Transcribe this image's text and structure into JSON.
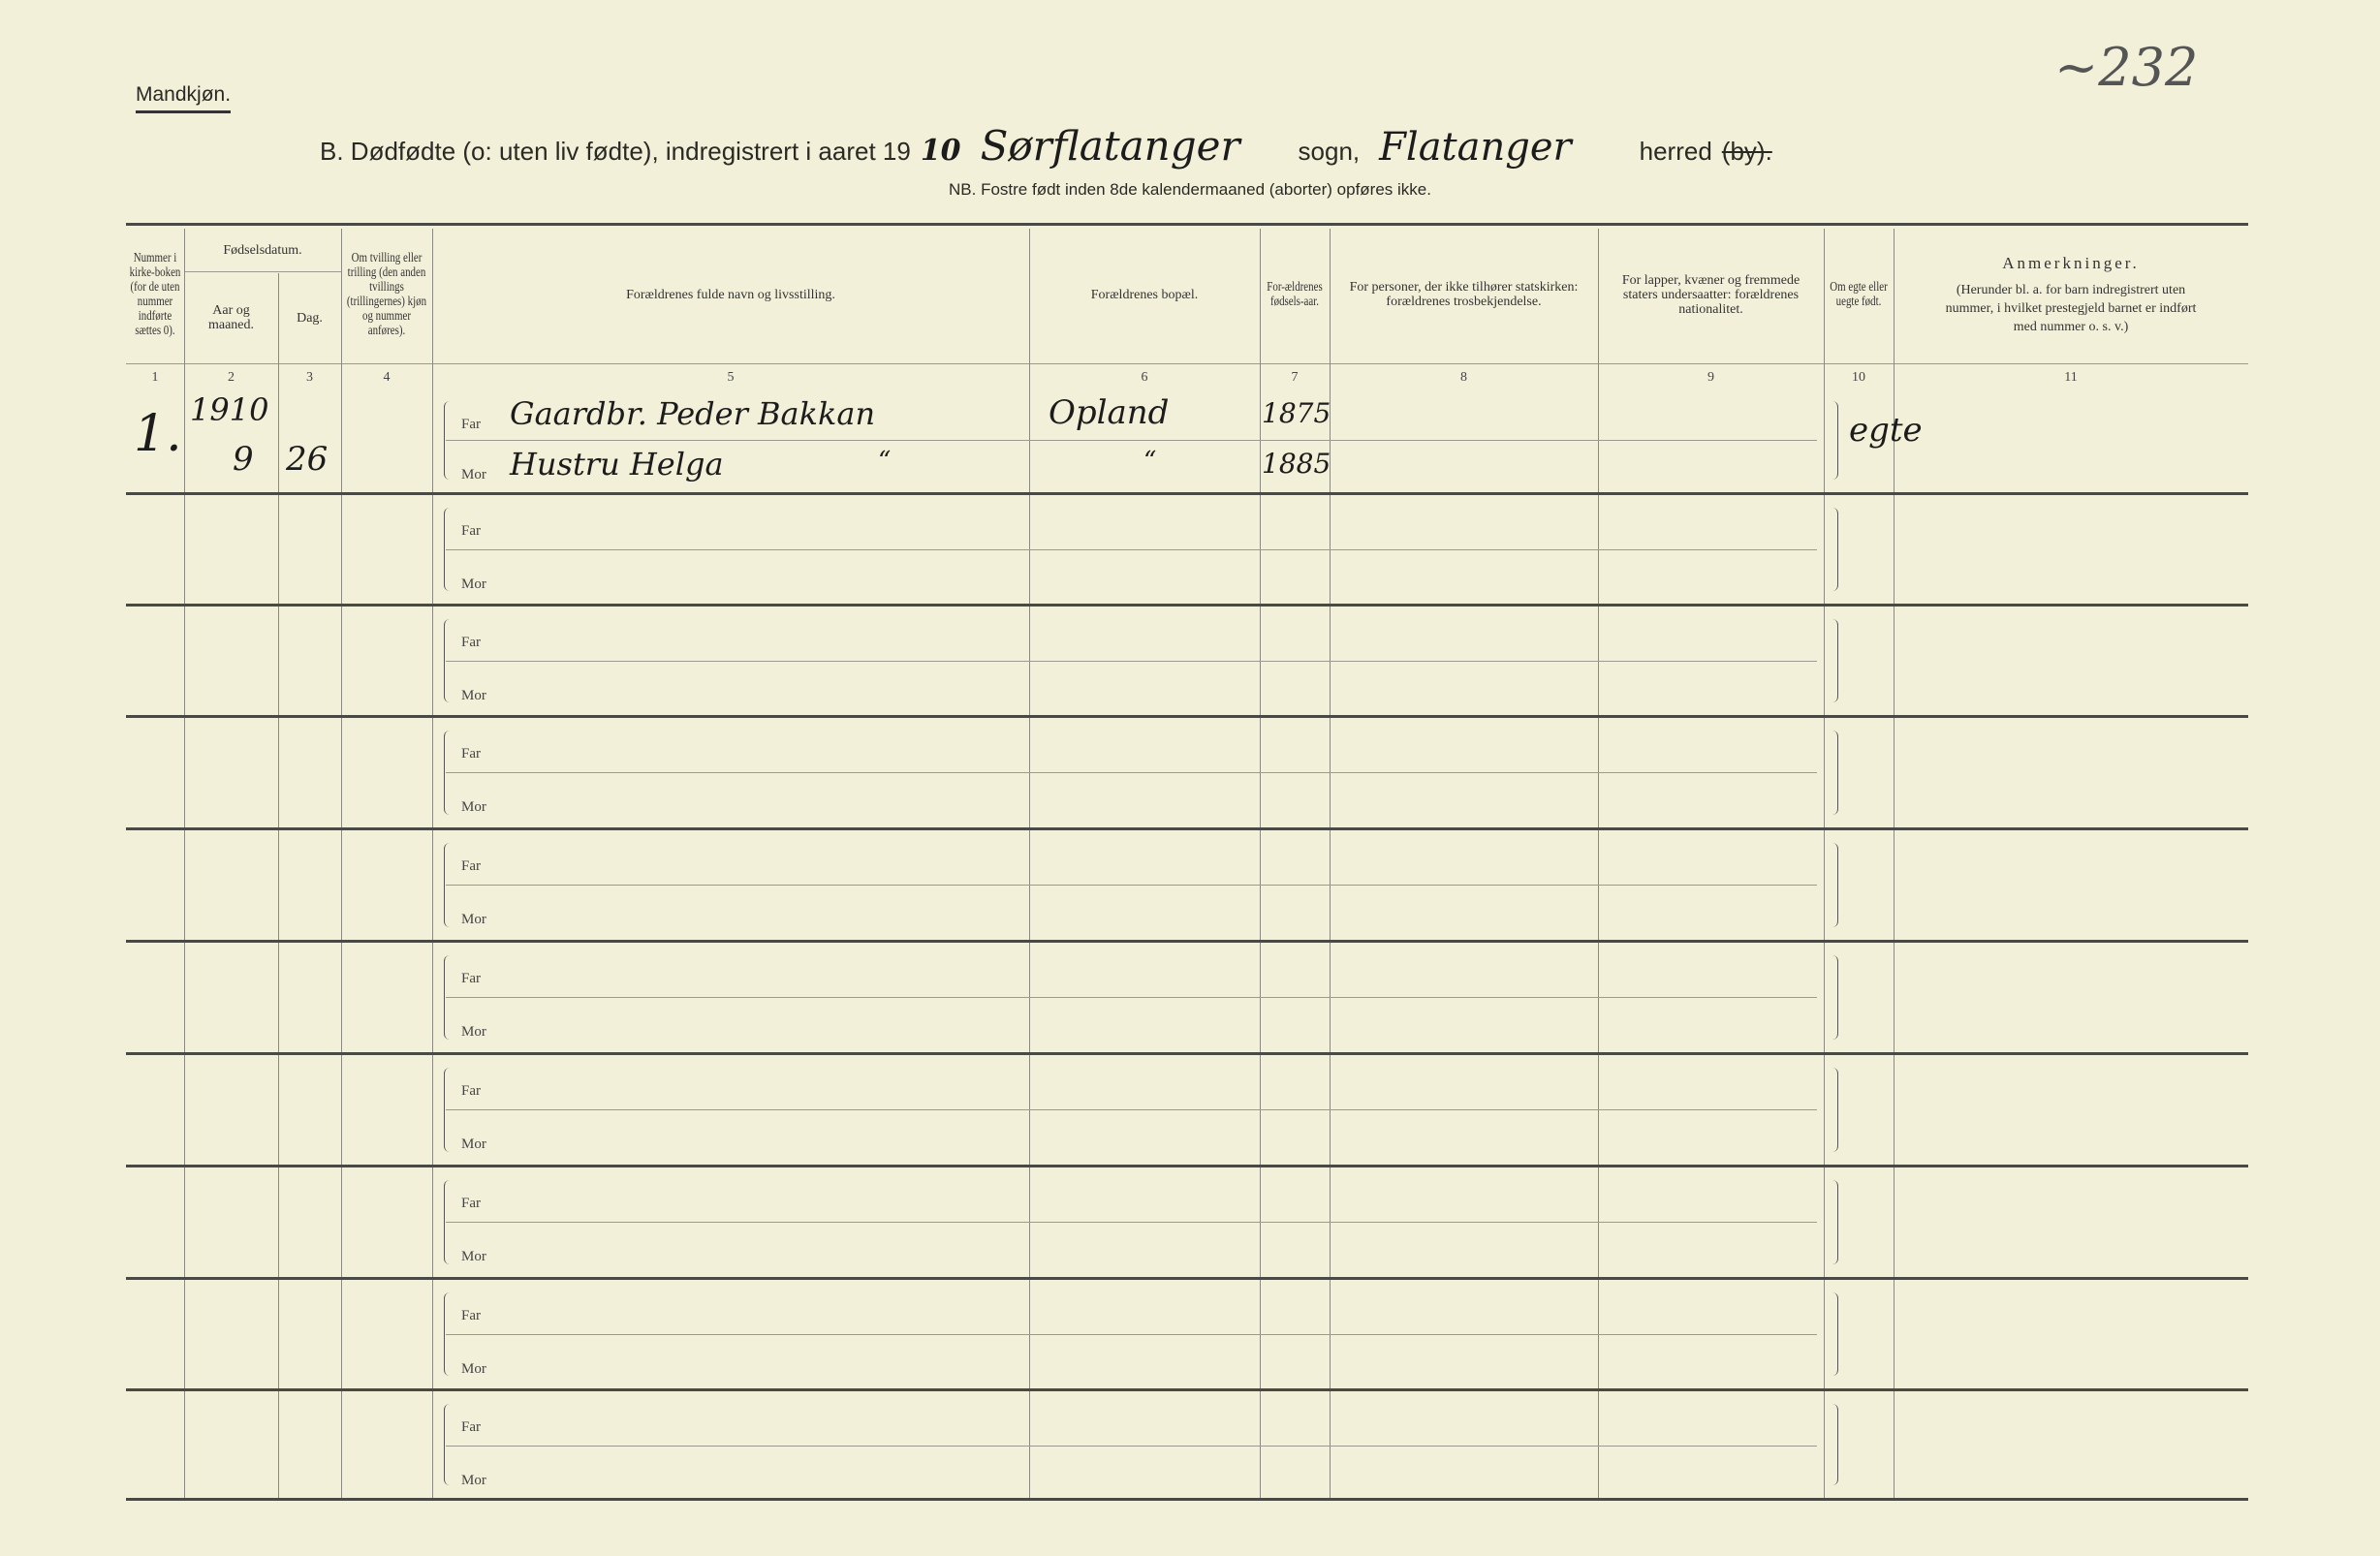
{
  "header": {
    "gender": "Mandkjøn.",
    "title_prefix": "B.  Dødfødte (o: uten liv fødte), indregistrert i aaret 19",
    "year_hand": "10",
    "parish_hand": "Sørflatanger",
    "parish_label": "sogn,",
    "district_hand": "Flatanger",
    "district_label": "herred",
    "by_struck": "(by).",
    "page_number": "~232",
    "note": "NB.  Fostre født inden 8de kalendermaaned (aborter) opføres ikke."
  },
  "columns": [
    {
      "label": "Nummer i kirke-boken (for de uten nummer indførte sættes 0).",
      "num": "1"
    },
    {
      "label": "Aar og maaned.",
      "num": "2"
    },
    {
      "label": "Dag.",
      "num": "3"
    },
    {
      "label": "Om tvilling eller trilling (den anden tvillings (trillingernes) kjøn og nummer anføres).",
      "num": "4"
    },
    {
      "label": "Forældrenes fulde navn og livsstilling.",
      "num": "5"
    },
    {
      "label": "Forældrenes bopæl.",
      "num": "6"
    },
    {
      "label": "For-ældrenes fødsels-aar.",
      "num": "7"
    },
    {
      "label": "For personer, der ikke tilhører statskirken: forældrenes trosbekjendelse.",
      "num": "8"
    },
    {
      "label": "For lapper, kvæner og fremmede staters undersaatter: forældrenes nationalitet.",
      "num": "9"
    },
    {
      "label": "Om egte eller uegte født.",
      "num": "10"
    },
    {
      "label": "Anmerkninger.",
      "sub": "(Herunder bl. a. for barn indregistrert uten nummer, i hvilket prestegjeld barnet er indført med nummer o. s. v.)",
      "num": "11"
    }
  ],
  "group_header": "Fødselsdatum.",
  "far_label": "Far",
  "mor_label": "Mor",
  "entries": [
    {
      "number": "1.",
      "year": "1910",
      "month": "9",
      "day": "26",
      "father": "Gaardbr. Peder Bakkan",
      "mother": "Hustru Helga",
      "mother_ditto": "“",
      "residence": "Opland",
      "residence_mor": "“",
      "father_born": "1875",
      "mother_born": "1885",
      "legitimacy": "egte"
    }
  ],
  "empty_rows": 9
}
